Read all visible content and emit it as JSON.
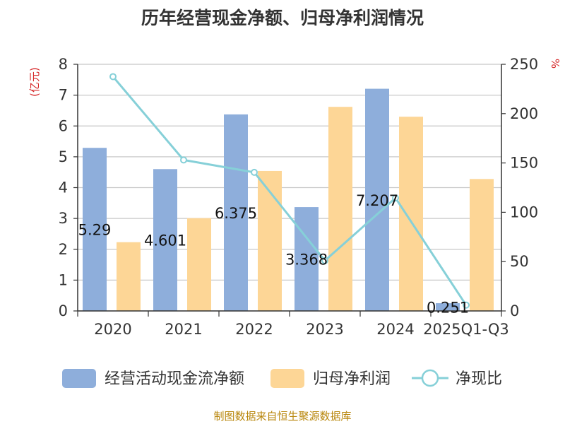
{
  "chart_data": {
    "type": "bar",
    "title": "历年经营现金净额、归母净利润情况",
    "categories": [
      "2020",
      "2021",
      "2022",
      "2023",
      "2024",
      "2025Q1-Q3"
    ],
    "series": [
      {
        "name": "经营活动现金流净额",
        "type": "bar",
        "axis": "left",
        "color": "#8eaedb",
        "values": [
          5.29,
          4.601,
          6.375,
          3.368,
          7.207,
          0.251
        ],
        "labels": [
          "5.29",
          "4.601",
          "6.375",
          "3.368",
          "7.207",
          "0.251"
        ]
      },
      {
        "name": "归母净利润",
        "type": "bar",
        "axis": "left",
        "color": "#fdd696",
        "values": [
          2.23,
          3.01,
          4.54,
          6.62,
          6.3,
          4.28
        ]
      },
      {
        "name": "净现比",
        "type": "line",
        "axis": "right",
        "color": "#86d0d8",
        "values": [
          237.5,
          153,
          140.5,
          51,
          114.5,
          5.9
        ]
      }
    ],
    "y_left": {
      "unit": "(亿元)",
      "min": 0,
      "max": 8,
      "ticks": [
        0,
        1,
        2,
        3,
        4,
        5,
        6,
        7,
        8
      ]
    },
    "y_right": {
      "unit": "%",
      "min": 0,
      "max": 250,
      "ticks": [
        0,
        50,
        100,
        150,
        200,
        250
      ]
    },
    "grid": true,
    "legend_position": "bottom"
  },
  "footer": {
    "source": "制图数据来自恒生聚源数据库"
  }
}
